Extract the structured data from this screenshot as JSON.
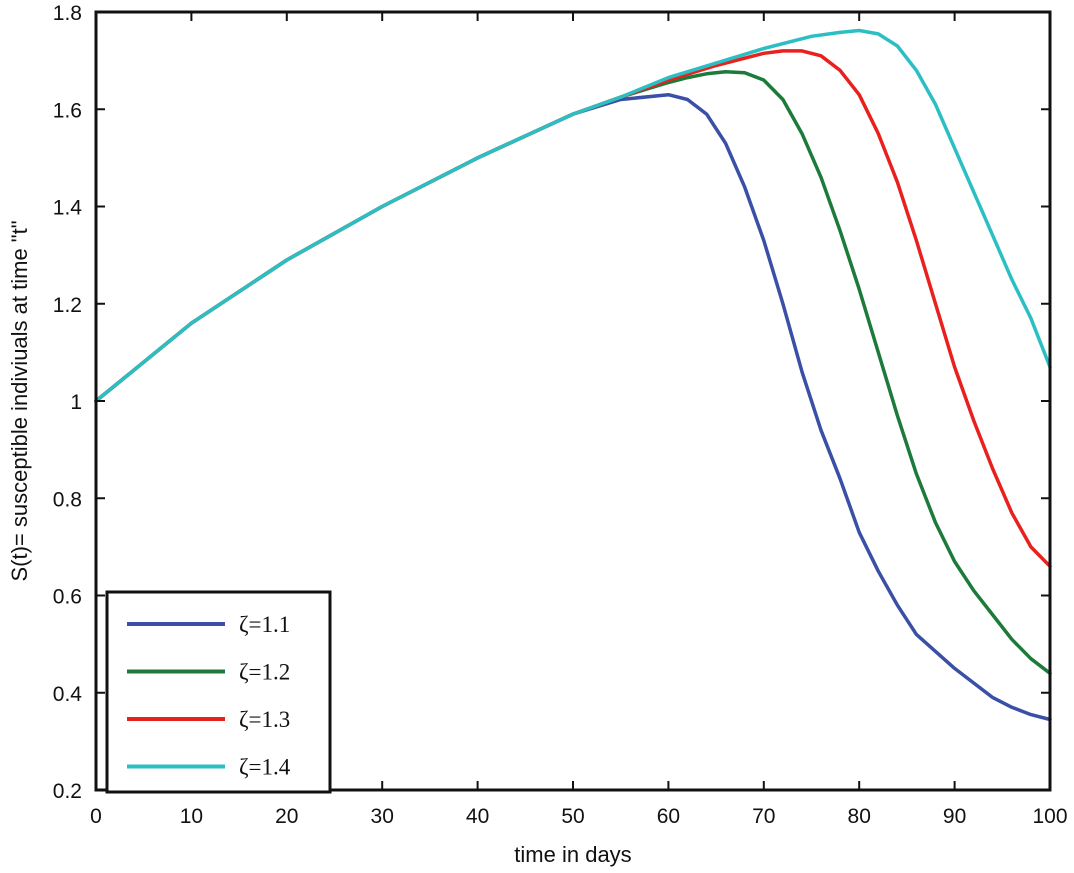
{
  "chart_data": {
    "type": "line",
    "title": "",
    "xlabel": "time in days",
    "ylabel": "S(t)= susceptible indiviuals at time \"t\"",
    "xlim": [
      0,
      100
    ],
    "ylim": [
      0.2,
      1.8
    ],
    "xticks": [
      "0",
      "10",
      "20",
      "30",
      "40",
      "50",
      "60",
      "70",
      "80",
      "90",
      "100"
    ],
    "yticks": [
      "0.2",
      "0.4",
      "0.6",
      "0.8",
      "1",
      "1.2",
      "1.4",
      "1.6",
      "1.8"
    ],
    "grid": false,
    "legend_position": "bottom-left",
    "series": [
      {
        "name": "ζ=1.1",
        "color": "#3a4fa6",
        "x": [
          0,
          10,
          20,
          30,
          40,
          50,
          55,
          60,
          62,
          64,
          66,
          68,
          70,
          72,
          74,
          76,
          78,
          80,
          82,
          84,
          86,
          88,
          90,
          92,
          94,
          96,
          98,
          100
        ],
        "y": [
          1.0,
          1.16,
          1.29,
          1.4,
          1.5,
          1.59,
          1.62,
          1.63,
          1.62,
          1.59,
          1.53,
          1.44,
          1.33,
          1.2,
          1.06,
          0.94,
          0.84,
          0.73,
          0.65,
          0.58,
          0.52,
          0.485,
          0.45,
          0.42,
          0.39,
          0.37,
          0.355,
          0.345
        ]
      },
      {
        "name": "ζ=1.2",
        "color": "#1c7a3a",
        "x": [
          0,
          10,
          20,
          30,
          40,
          50,
          55,
          60,
          62,
          64,
          66,
          68,
          70,
          72,
          74,
          76,
          78,
          80,
          82,
          84,
          86,
          88,
          90,
          92,
          94,
          96,
          98,
          100
        ],
        "y": [
          1.0,
          1.16,
          1.29,
          1.4,
          1.5,
          1.59,
          1.625,
          1.655,
          1.665,
          1.673,
          1.677,
          1.675,
          1.66,
          1.62,
          1.55,
          1.46,
          1.35,
          1.23,
          1.1,
          0.97,
          0.85,
          0.75,
          0.67,
          0.61,
          0.56,
          0.51,
          0.47,
          0.44
        ]
      },
      {
        "name": "ζ=1.3",
        "color": "#e8211e",
        "x": [
          0,
          10,
          20,
          30,
          40,
          50,
          55,
          60,
          65,
          70,
          72,
          74,
          76,
          78,
          80,
          82,
          84,
          86,
          88,
          90,
          92,
          94,
          96,
          98,
          100
        ],
        "y": [
          1.0,
          1.16,
          1.29,
          1.4,
          1.5,
          1.59,
          1.625,
          1.66,
          1.69,
          1.715,
          1.72,
          1.72,
          1.71,
          1.68,
          1.63,
          1.55,
          1.45,
          1.33,
          1.2,
          1.07,
          0.96,
          0.86,
          0.77,
          0.7,
          0.66
        ]
      },
      {
        "name": "ζ=1.4",
        "color": "#2bbfc4",
        "x": [
          0,
          10,
          20,
          30,
          40,
          50,
          55,
          60,
          65,
          70,
          75,
          78,
          80,
          82,
          84,
          86,
          88,
          90,
          92,
          94,
          96,
          98,
          100
        ],
        "y": [
          1.0,
          1.16,
          1.29,
          1.4,
          1.5,
          1.59,
          1.625,
          1.665,
          1.695,
          1.725,
          1.75,
          1.758,
          1.762,
          1.755,
          1.73,
          1.68,
          1.61,
          1.52,
          1.43,
          1.34,
          1.25,
          1.17,
          1.07
        ]
      }
    ]
  }
}
